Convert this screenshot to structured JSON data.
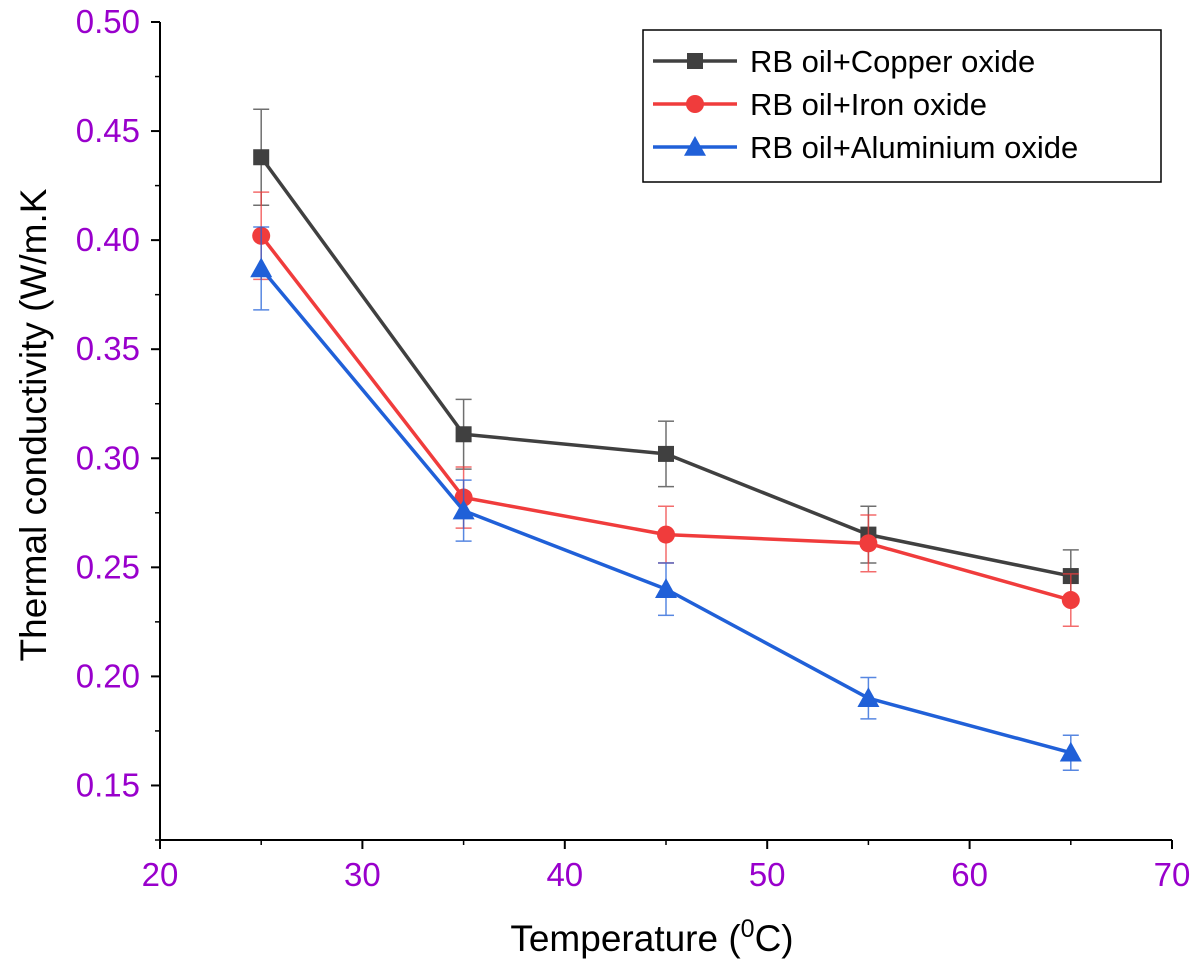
{
  "colors": {
    "tick_label": "#9900cc",
    "axis": "#000000",
    "copper": "#404040",
    "iron": "#f03c3c",
    "aluminium": "#2060d8"
  },
  "chart_data": {
    "type": "line",
    "title": "",
    "xlabel": "Temperature (",
    "xlabel_sup": "0",
    "xlabel_unit": "C)",
    "ylabel": "Thermal conductivity (W/m.K",
    "xlim": [
      20,
      70
    ],
    "ylim": [
      0.125,
      0.5
    ],
    "x_ticks": [
      "20",
      "30",
      "40",
      "50",
      "60",
      "70"
    ],
    "y_ticks": [
      "0.15",
      "0.20",
      "0.25",
      "0.30",
      "0.35",
      "0.40",
      "0.45",
      "0.50"
    ],
    "grid": false,
    "legend_position": "top-right",
    "x": [
      25,
      35,
      45,
      55,
      65
    ],
    "series": [
      {
        "name": "RB oil+Copper oxide",
        "marker": "square",
        "color": "#404040",
        "values": [
          0.438,
          0.311,
          0.302,
          0.265,
          0.246
        ],
        "error": [
          0.022,
          0.016,
          0.015,
          0.013,
          0.012
        ]
      },
      {
        "name": "RB oil+Iron oxide",
        "marker": "circle",
        "color": "#f03c3c",
        "values": [
          0.402,
          0.282,
          0.265,
          0.261,
          0.235
        ],
        "error": [
          0.02,
          0.014,
          0.013,
          0.013,
          0.012
        ]
      },
      {
        "name": "RB oil+Aluminium oxide",
        "marker": "triangle",
        "color": "#2060d8",
        "values": [
          0.387,
          0.276,
          0.24,
          0.19,
          0.165
        ],
        "error": [
          0.019,
          0.014,
          0.012,
          0.0095,
          0.008
        ]
      }
    ]
  }
}
